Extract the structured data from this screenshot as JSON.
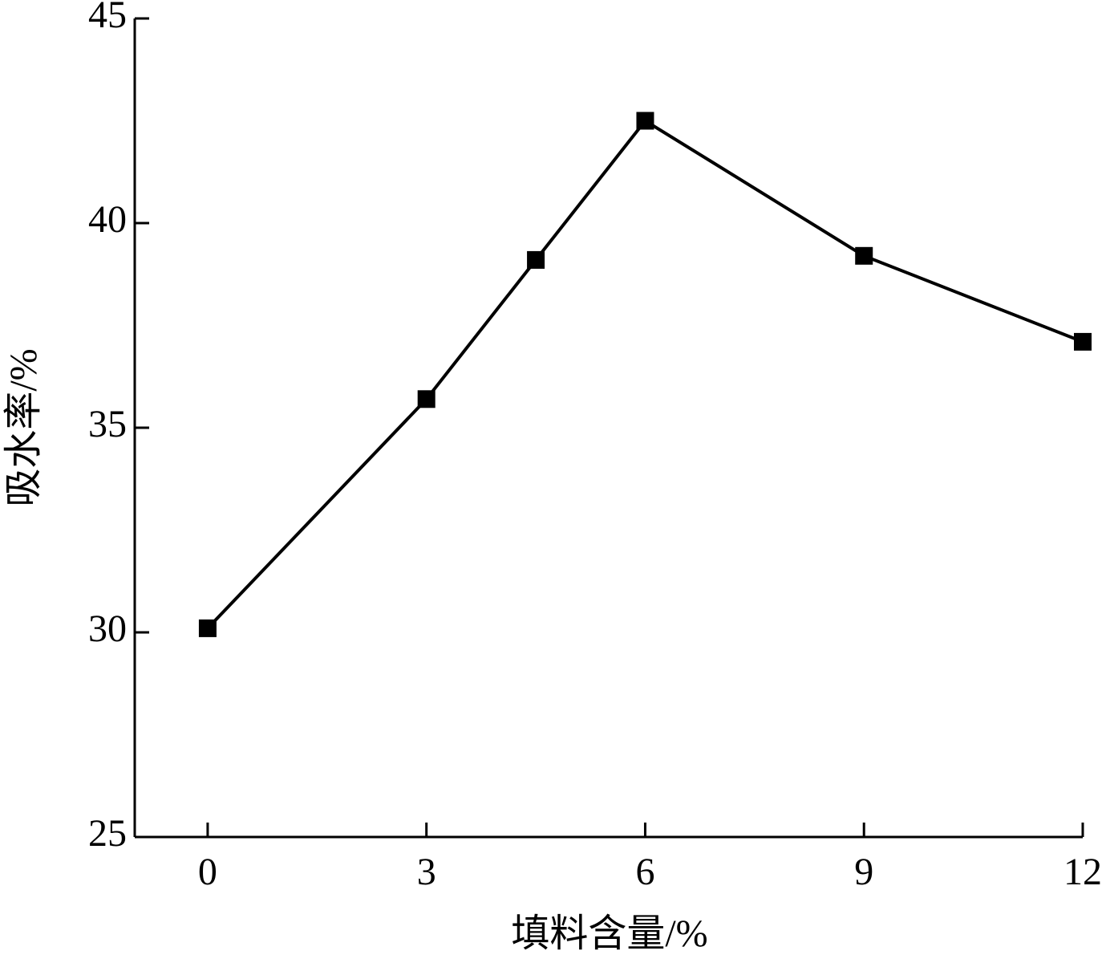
{
  "chart_data": {
    "type": "line",
    "x_label": "填料含量/%",
    "y_label": "吸水率/%",
    "x": [
      0,
      3,
      4.5,
      6,
      9,
      12
    ],
    "series": [
      {
        "color": "#000000",
        "values": [
          30.1,
          35.7,
          39.1,
          42.5,
          39.2,
          37.1
        ]
      }
    ],
    "xlim": [
      -1,
      12
    ],
    "xticks": [
      0,
      3,
      6,
      9,
      12
    ],
    "ylim": [
      25,
      45
    ],
    "yticks": [
      25,
      30,
      35,
      40,
      45
    ],
    "grid": false
  }
}
